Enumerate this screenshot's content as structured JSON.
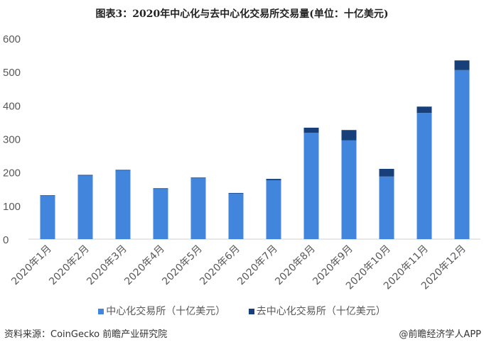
{
  "chart_data": {
    "type": "bar",
    "stacked": true,
    "title": "图表3：2020年中心化与去中心化交易所交易量(单位：十亿美元)",
    "xlabel": "",
    "ylabel": "",
    "ylim": [
      0,
      600
    ],
    "yticks": [
      0,
      100,
      200,
      300,
      400,
      500,
      600
    ],
    "grid": false,
    "legend_position": "bottom",
    "categories": [
      "2020年1月",
      "2020年2月",
      "2020年3月",
      "2020年4月",
      "2020年5月",
      "2020年6月",
      "2020年7月",
      "2020年8月",
      "2020年9月",
      "2020年10月",
      "2020年11月",
      "2020年12月"
    ],
    "series": [
      {
        "name": "中心化交易所（十亿美元）",
        "color": "#4285DC",
        "values": [
          130,
          191,
          206,
          151,
          183,
          137,
          176,
          318,
          295,
          187,
          377,
          505
        ]
      },
      {
        "name": "去中心化交易所（十亿美元）",
        "color": "#17407A",
        "values": [
          1,
          1,
          1,
          1,
          1,
          1,
          4,
          15,
          31,
          23,
          19,
          29
        ]
      }
    ]
  },
  "footer": {
    "source": "资料来源：CoinGecko 前瞻产业研究院",
    "credit": "@前瞻经济学人APP"
  }
}
